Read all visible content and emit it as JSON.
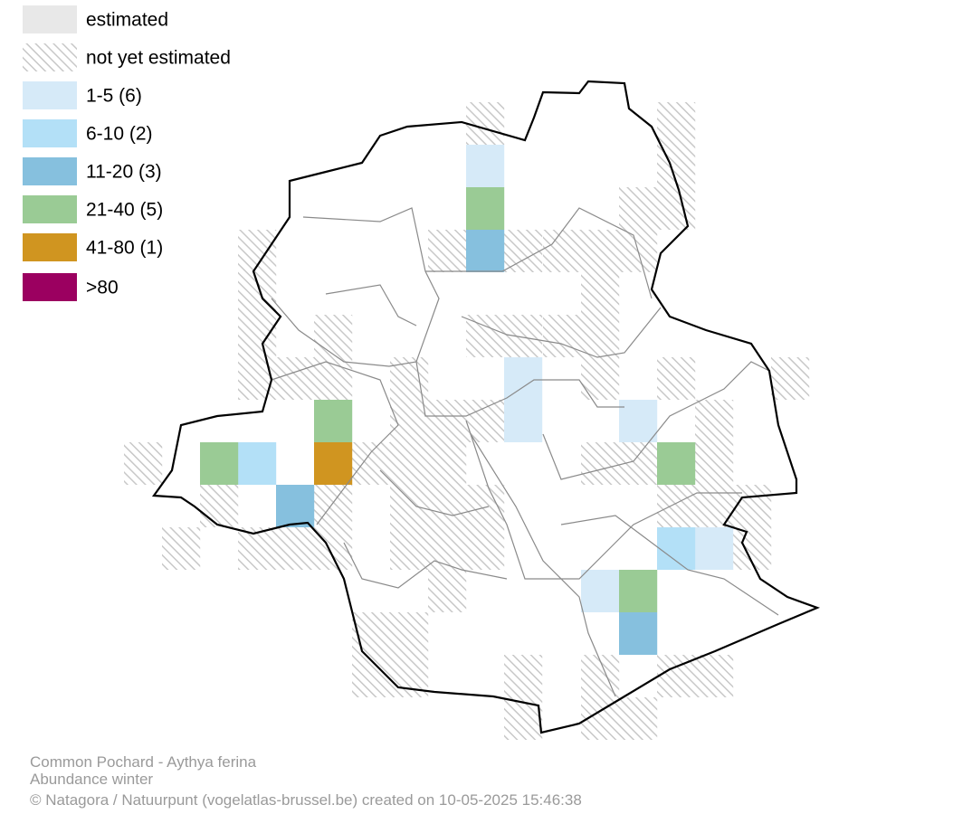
{
  "legend": {
    "items": [
      {
        "label": "estimated",
        "color": "#e8e8e8",
        "hatched": false
      },
      {
        "label": "not yet estimated",
        "color": "#c8c8c8",
        "hatched": true
      },
      {
        "label": "1-5 (6)",
        "color": "#d6eaf8",
        "hatched": false
      },
      {
        "label": "6-10 (2)",
        "color": "#b3e0f7",
        "hatched": false
      },
      {
        "label": "11-20 (3)",
        "color": "#86c0de",
        "hatched": false
      },
      {
        "label": "21-40 (5)",
        "color": "#9acb95",
        "hatched": false
      },
      {
        "label": "41-80 (1)",
        "color": "#d09520",
        "hatched": false
      },
      {
        "label": ">80",
        "color": "#9b0060",
        "hatched": false
      }
    ]
  },
  "footer": {
    "lines": [
      "Common Pochard - Aythya ferina",
      "Abundance winter",
      "© Natagora / Natuurpunt (vogelatlas-brussel.be) created on 10-05-2025 15:46:38"
    ]
  }
}
